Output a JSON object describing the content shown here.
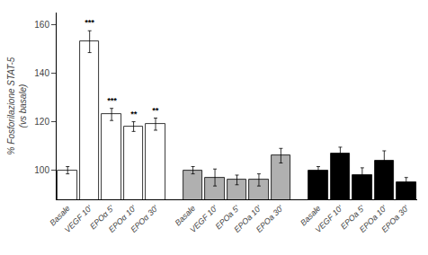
{
  "chart_data": {
    "type": "bar",
    "ylabel": "% Fosforilazione STAT-5\n(vs basale)",
    "series": [
      {
        "color": "white",
        "categories": [
          "Basale",
          "VEGF 10'",
          "EPOα 5'",
          "EPOα 10'",
          "EPOα 30'"
        ],
        "values": [
          100,
          153,
          123,
          118,
          119
        ],
        "errors": [
          1.5,
          4.5,
          2.5,
          2.0,
          2.5
        ],
        "significance": [
          null,
          "***",
          "***",
          "**",
          "**"
        ]
      },
      {
        "color": "#b0b0b0",
        "categories": [
          "Basale",
          "VEGF 10'",
          "EPOa 5'",
          "EPOa 10'",
          "EPOa 30'"
        ],
        "values": [
          100,
          97,
          96,
          96,
          106
        ],
        "errors": [
          1.5,
          3.5,
          2.0,
          2.5,
          3.0
        ]
      },
      {
        "color": "black",
        "categories": [
          "Basale",
          "VEGF 10'",
          "EPOa 5'",
          "EPOa 10'",
          "EPOa 30'"
        ],
        "values": [
          100,
          107,
          98,
          104,
          95
        ],
        "errors": [
          1.5,
          2.5,
          3.0,
          4.0,
          2.0
        ]
      }
    ],
    "ylim": [
      88,
      165
    ],
    "yticks": [
      100,
      120,
      140,
      160
    ],
    "grid": false
  }
}
